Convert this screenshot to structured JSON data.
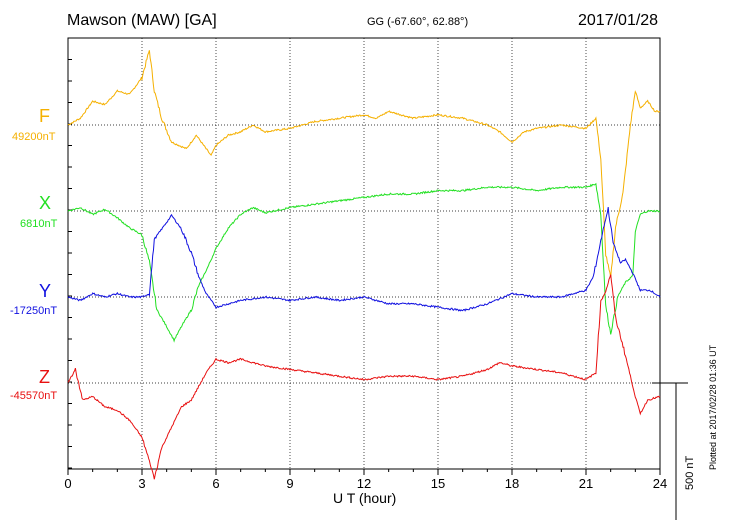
{
  "header": {
    "station": "Mawson (MAW)  [GA]",
    "coords": "GG (-67.60°,  62.88°)",
    "date": "2017/01/28"
  },
  "plotted_note": "Plotted at 2017/02/28 01:36 UT",
  "chart_data": {
    "type": "line",
    "xlabel": "U T (hour)",
    "xlim": [
      0,
      24
    ],
    "xticks": [
      0,
      3,
      6,
      9,
      12,
      15,
      18,
      21,
      24
    ],
    "grid": "dotted",
    "scale_bar": {
      "value_nT": 500,
      "label": "500 nT"
    },
    "series": [
      {
        "name": "F",
        "baseline_label": "49200nT",
        "color": "#f5b000",
        "values_nT": [
          [
            0,
            49200
          ],
          [
            0.5,
            49220
          ],
          [
            1,
            49270
          ],
          [
            1.5,
            49260
          ],
          [
            2,
            49300
          ],
          [
            2.5,
            49290
          ],
          [
            3,
            49340
          ],
          [
            3.3,
            49420
          ],
          [
            3.5,
            49300
          ],
          [
            3.8,
            49220
          ],
          [
            4.2,
            49150
          ],
          [
            4.8,
            49130
          ],
          [
            5.2,
            49170
          ],
          [
            5.8,
            49110
          ],
          [
            6,
            49140
          ],
          [
            6.5,
            49170
          ],
          [
            7,
            49180
          ],
          [
            7.5,
            49200
          ],
          [
            8,
            49180
          ],
          [
            9,
            49190
          ],
          [
            10,
            49210
          ],
          [
            11,
            49220
          ],
          [
            12,
            49230
          ],
          [
            12.5,
            49220
          ],
          [
            13,
            49240
          ],
          [
            14,
            49220
          ],
          [
            15,
            49230
          ],
          [
            16,
            49220
          ],
          [
            17,
            49200
          ],
          [
            17.5,
            49180
          ],
          [
            18,
            49150
          ],
          [
            18.5,
            49180
          ],
          [
            19,
            49190
          ],
          [
            20,
            49200
          ],
          [
            21,
            49190
          ],
          [
            21.4,
            49220
          ],
          [
            21.6,
            49100
          ],
          [
            21.8,
            48820
          ],
          [
            22,
            48750
          ],
          [
            22.2,
            48900
          ],
          [
            22.5,
            49000
          ],
          [
            22.8,
            49200
          ],
          [
            23,
            49300
          ],
          [
            23.2,
            49250
          ],
          [
            23.5,
            49270
          ],
          [
            23.8,
            49240
          ],
          [
            24,
            49240
          ]
        ]
      },
      {
        "name": "X",
        "baseline_label": "6810nT",
        "color": "#22e022",
        "values_nT": [
          [
            0,
            6810
          ],
          [
            0.5,
            6820
          ],
          [
            1,
            6800
          ],
          [
            1.5,
            6815
          ],
          [
            2,
            6790
          ],
          [
            2.5,
            6760
          ],
          [
            3,
            6740
          ],
          [
            3.3,
            6660
          ],
          [
            3.6,
            6520
          ],
          [
            4,
            6470
          ],
          [
            4.3,
            6430
          ],
          [
            4.6,
            6470
          ],
          [
            5,
            6520
          ],
          [
            5.3,
            6590
          ],
          [
            5.7,
            6650
          ],
          [
            6,
            6700
          ],
          [
            6.5,
            6760
          ],
          [
            7,
            6800
          ],
          [
            7.5,
            6820
          ],
          [
            8,
            6805
          ],
          [
            9,
            6820
          ],
          [
            10,
            6830
          ],
          [
            11,
            6840
          ],
          [
            12,
            6850
          ],
          [
            13,
            6860
          ],
          [
            14,
            6860
          ],
          [
            15,
            6870
          ],
          [
            16,
            6870
          ],
          [
            17,
            6880
          ],
          [
            18,
            6880
          ],
          [
            19,
            6870
          ],
          [
            20,
            6880
          ],
          [
            21,
            6880
          ],
          [
            21.4,
            6890
          ],
          [
            21.6,
            6800
          ],
          [
            21.8,
            6530
          ],
          [
            22,
            6450
          ],
          [
            22.3,
            6560
          ],
          [
            22.6,
            6600
          ],
          [
            22.9,
            6620
          ],
          [
            23,
            6750
          ],
          [
            23.2,
            6800
          ],
          [
            23.5,
            6810
          ],
          [
            24,
            6810
          ]
        ]
      },
      {
        "name": "Y",
        "baseline_label": "-17250nT",
        "color": "#1010e0",
        "values_nT": [
          [
            0,
            -17250
          ],
          [
            0.5,
            -17260
          ],
          [
            1,
            -17240
          ],
          [
            1.5,
            -17250
          ],
          [
            2,
            -17240
          ],
          [
            2.5,
            -17250
          ],
          [
            3,
            -17250
          ],
          [
            3.3,
            -17240
          ],
          [
            3.5,
            -17080
          ],
          [
            3.8,
            -17050
          ],
          [
            4.2,
            -17010
          ],
          [
            4.6,
            -17050
          ],
          [
            5,
            -17120
          ],
          [
            5.3,
            -17190
          ],
          [
            5.6,
            -17240
          ],
          [
            6,
            -17280
          ],
          [
            6.5,
            -17270
          ],
          [
            7,
            -17260
          ],
          [
            8,
            -17250
          ],
          [
            9,
            -17260
          ],
          [
            10,
            -17250
          ],
          [
            11,
            -17260
          ],
          [
            12,
            -17250
          ],
          [
            13,
            -17270
          ],
          [
            14,
            -17270
          ],
          [
            15,
            -17280
          ],
          [
            16,
            -17290
          ],
          [
            17,
            -17270
          ],
          [
            18,
            -17240
          ],
          [
            19,
            -17250
          ],
          [
            20,
            -17250
          ],
          [
            21,
            -17230
          ],
          [
            21.3,
            -17190
          ],
          [
            21.5,
            -17120
          ],
          [
            21.7,
            -17050
          ],
          [
            21.9,
            -16990
          ],
          [
            22.1,
            -17090
          ],
          [
            22.4,
            -17150
          ],
          [
            22.6,
            -17140
          ],
          [
            22.9,
            -17180
          ],
          [
            23.2,
            -17230
          ],
          [
            23.6,
            -17230
          ],
          [
            24,
            -17250
          ]
        ]
      },
      {
        "name": "Z",
        "baseline_label": "-45570nT",
        "color": "#e81010",
        "values_nT": [
          [
            0,
            -45570
          ],
          [
            0.3,
            -45530
          ],
          [
            0.6,
            -45620
          ],
          [
            1,
            -45610
          ],
          [
            1.5,
            -45640
          ],
          [
            2,
            -45650
          ],
          [
            2.5,
            -45680
          ],
          [
            3,
            -45730
          ],
          [
            3.3,
            -45800
          ],
          [
            3.5,
            -45850
          ],
          [
            3.8,
            -45760
          ],
          [
            4.2,
            -45700
          ],
          [
            4.6,
            -45640
          ],
          [
            5,
            -45620
          ],
          [
            5.3,
            -45580
          ],
          [
            5.6,
            -45540
          ],
          [
            6,
            -45500
          ],
          [
            6.5,
            -45510
          ],
          [
            7,
            -45500
          ],
          [
            8,
            -45520
          ],
          [
            9,
            -45530
          ],
          [
            10,
            -45540
          ],
          [
            11,
            -45550
          ],
          [
            12,
            -45560
          ],
          [
            13,
            -45550
          ],
          [
            14,
            -45550
          ],
          [
            15,
            -45560
          ],
          [
            16,
            -45550
          ],
          [
            17,
            -45530
          ],
          [
            17.5,
            -45510
          ],
          [
            18,
            -45520
          ],
          [
            19,
            -45530
          ],
          [
            20,
            -45540
          ],
          [
            21,
            -45560
          ],
          [
            21.4,
            -45540
          ],
          [
            21.6,
            -45330
          ],
          [
            21.8,
            -45300
          ],
          [
            22,
            -45250
          ],
          [
            22.2,
            -45380
          ],
          [
            22.5,
            -45460
          ],
          [
            22.8,
            -45550
          ],
          [
            23,
            -45610
          ],
          [
            23.2,
            -45660
          ],
          [
            23.5,
            -45620
          ],
          [
            24,
            -45610
          ]
        ]
      }
    ]
  }
}
